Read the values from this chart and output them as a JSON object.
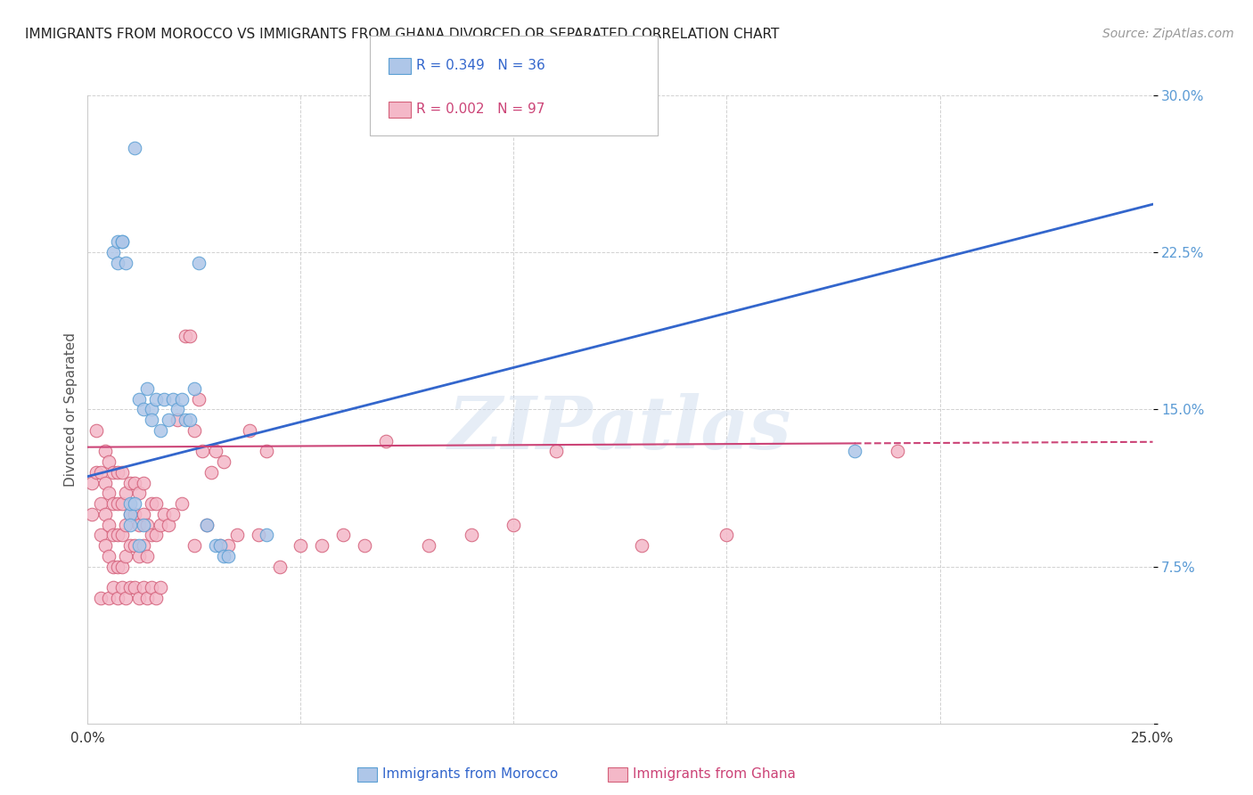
{
  "title": "IMMIGRANTS FROM MOROCCO VS IMMIGRANTS FROM GHANA DIVORCED OR SEPARATED CORRELATION CHART",
  "source": "Source: ZipAtlas.com",
  "ylabel": "Divorced or Separated",
  "xlim": [
    0.0,
    0.25
  ],
  "ylim": [
    0.0,
    0.3
  ],
  "yticks": [
    0.0,
    0.075,
    0.15,
    0.225,
    0.3
  ],
  "ytick_labels": [
    "",
    "7.5%",
    "15.0%",
    "22.5%",
    "30.0%"
  ],
  "xticks": [
    0.0,
    0.05,
    0.1,
    0.15,
    0.2,
    0.25
  ],
  "xtick_labels": [
    "0.0%",
    "",
    "",
    "",
    "",
    "25.0%"
  ],
  "morocco_R": 0.349,
  "morocco_N": 36,
  "ghana_R": 0.002,
  "ghana_N": 97,
  "background_color": "#ffffff",
  "grid_color": "#cccccc",
  "morocco_color": "#aec6e8",
  "morocco_edge_color": "#5a9fd4",
  "ghana_color": "#f4b8c8",
  "ghana_edge_color": "#d4607a",
  "morocco_line_color": "#3366cc",
  "ghana_line_color": "#cc4477",
  "watermark": "ZIPatlas",
  "morocco_line_intercept": 0.118,
  "morocco_line_slope": 0.52,
  "ghana_line_intercept": 0.132,
  "ghana_line_slope": 0.01,
  "morocco_scatter_x": [
    0.01,
    0.012,
    0.013,
    0.013,
    0.014,
    0.015,
    0.015,
    0.016,
    0.017,
    0.018,
    0.019,
    0.02,
    0.021,
    0.022,
    0.023,
    0.024,
    0.025,
    0.026,
    0.028,
    0.03,
    0.031,
    0.032,
    0.033,
    0.006,
    0.007,
    0.007,
    0.008,
    0.008,
    0.009,
    0.01,
    0.01,
    0.011,
    0.042,
    0.18,
    0.011,
    0.012
  ],
  "morocco_scatter_y": [
    0.1,
    0.155,
    0.095,
    0.15,
    0.16,
    0.15,
    0.145,
    0.155,
    0.14,
    0.155,
    0.145,
    0.155,
    0.15,
    0.155,
    0.145,
    0.145,
    0.16,
    0.22,
    0.095,
    0.085,
    0.085,
    0.08,
    0.08,
    0.225,
    0.23,
    0.22,
    0.23,
    0.23,
    0.22,
    0.105,
    0.095,
    0.105,
    0.09,
    0.13,
    0.275,
    0.085
  ],
  "ghana_scatter_x": [
    0.001,
    0.001,
    0.002,
    0.002,
    0.003,
    0.003,
    0.003,
    0.004,
    0.004,
    0.004,
    0.004,
    0.005,
    0.005,
    0.005,
    0.005,
    0.006,
    0.006,
    0.006,
    0.006,
    0.007,
    0.007,
    0.007,
    0.007,
    0.008,
    0.008,
    0.008,
    0.008,
    0.009,
    0.009,
    0.009,
    0.01,
    0.01,
    0.01,
    0.011,
    0.011,
    0.011,
    0.012,
    0.012,
    0.012,
    0.013,
    0.013,
    0.013,
    0.014,
    0.014,
    0.015,
    0.015,
    0.016,
    0.016,
    0.017,
    0.018,
    0.019,
    0.02,
    0.021,
    0.022,
    0.023,
    0.024,
    0.025,
    0.025,
    0.026,
    0.027,
    0.028,
    0.029,
    0.03,
    0.031,
    0.032,
    0.033,
    0.035,
    0.038,
    0.04,
    0.042,
    0.045,
    0.05,
    0.055,
    0.06,
    0.065,
    0.07,
    0.08,
    0.09,
    0.1,
    0.11,
    0.13,
    0.15,
    0.19,
    0.003,
    0.005,
    0.006,
    0.007,
    0.008,
    0.009,
    0.01,
    0.011,
    0.012,
    0.013,
    0.014,
    0.015,
    0.016,
    0.017
  ],
  "ghana_scatter_y": [
    0.115,
    0.1,
    0.12,
    0.14,
    0.09,
    0.105,
    0.12,
    0.085,
    0.1,
    0.115,
    0.13,
    0.08,
    0.095,
    0.11,
    0.125,
    0.075,
    0.09,
    0.105,
    0.12,
    0.075,
    0.09,
    0.105,
    0.12,
    0.075,
    0.09,
    0.105,
    0.12,
    0.08,
    0.095,
    0.11,
    0.085,
    0.1,
    0.115,
    0.085,
    0.1,
    0.115,
    0.08,
    0.095,
    0.11,
    0.085,
    0.1,
    0.115,
    0.08,
    0.095,
    0.09,
    0.105,
    0.09,
    0.105,
    0.095,
    0.1,
    0.095,
    0.1,
    0.145,
    0.105,
    0.185,
    0.185,
    0.14,
    0.085,
    0.155,
    0.13,
    0.095,
    0.12,
    0.13,
    0.085,
    0.125,
    0.085,
    0.09,
    0.14,
    0.09,
    0.13,
    0.075,
    0.085,
    0.085,
    0.09,
    0.085,
    0.135,
    0.085,
    0.09,
    0.095,
    0.13,
    0.085,
    0.09,
    0.13,
    0.06,
    0.06,
    0.065,
    0.06,
    0.065,
    0.06,
    0.065,
    0.065,
    0.06,
    0.065,
    0.06,
    0.065,
    0.06,
    0.065
  ]
}
